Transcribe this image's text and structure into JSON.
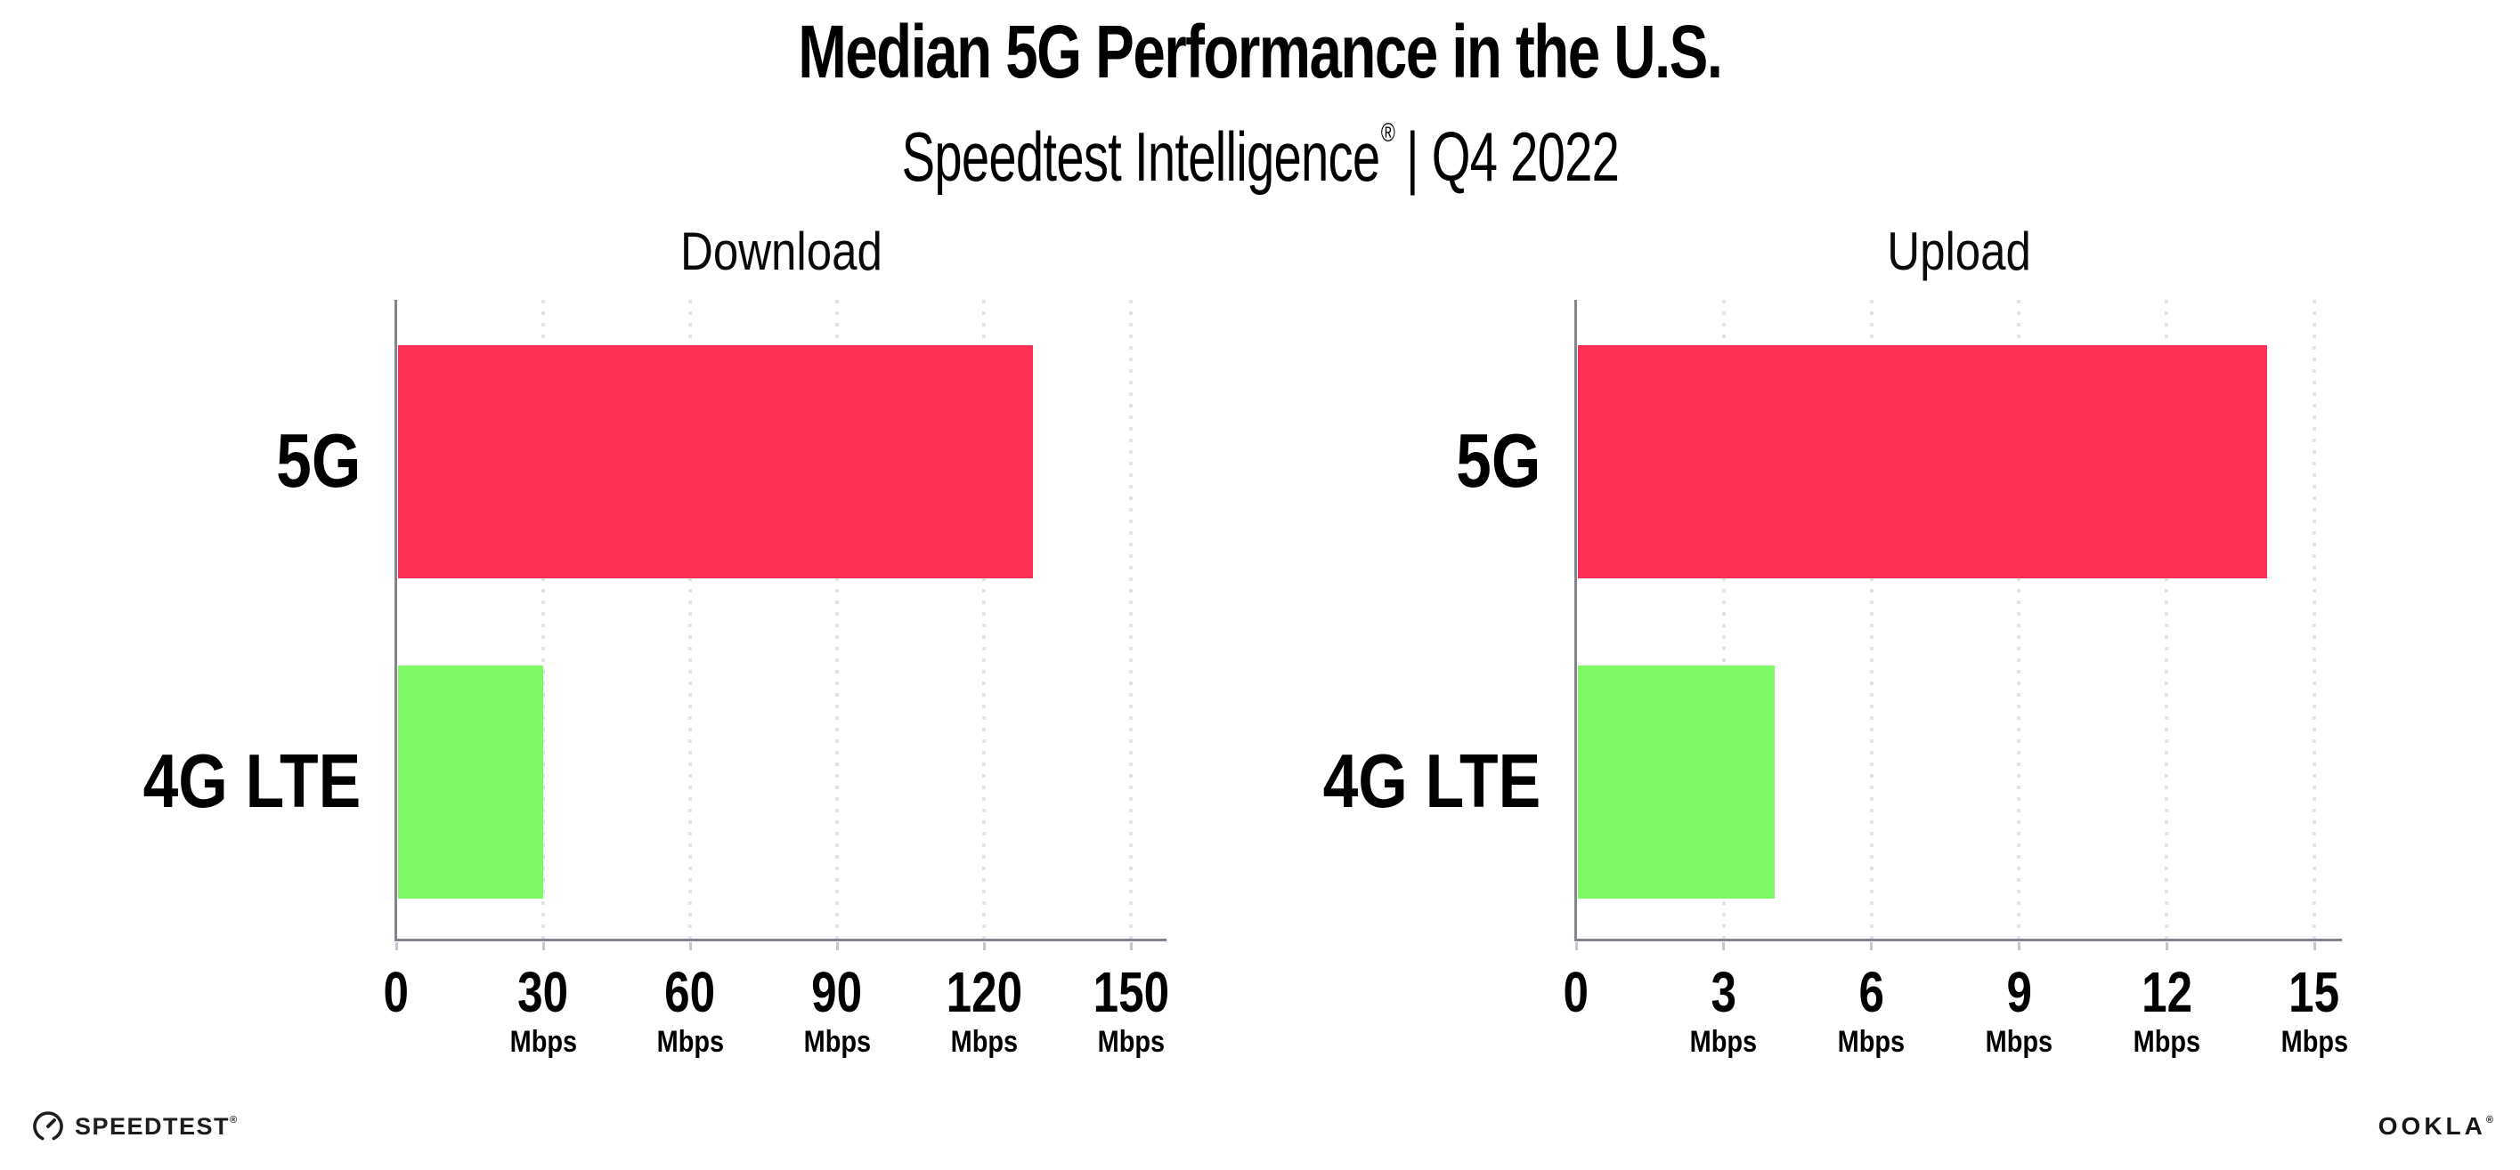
{
  "header": {
    "title": "Median 5G Performance in the U.S.",
    "subtitle_brand": "Speedtest Intelligence",
    "subtitle_reg": "®",
    "subtitle_rest": "| Q4 2022"
  },
  "footer": {
    "speedtest_label": "SPEEDTEST",
    "speedtest_reg": "®",
    "ookla_label": "OOKLA",
    "ookla_reg": "®"
  },
  "colors": {
    "bar_5g": "#ff3056",
    "bar_4g_lte": "#80fa64",
    "gridline": "#e3e2ee",
    "axis": "#84848e",
    "text": "#000000",
    "background": "#ffffff"
  },
  "chart_data": [
    {
      "type": "bar",
      "orientation": "horizontal",
      "title": "Download",
      "categories": [
        "5G",
        "4G LTE"
      ],
      "values": [
        129.6,
        29.7
      ],
      "unit": "Mbps",
      "xlim": [
        0,
        150
      ],
      "xticks": [
        0,
        30,
        60,
        90,
        120,
        150
      ],
      "xtick_unit": "Mbps",
      "bar_colors": [
        "#ff3056",
        "#80fa64"
      ],
      "grid": "vertical-dotted",
      "legend": "none"
    },
    {
      "type": "bar",
      "orientation": "horizontal",
      "title": "Upload",
      "categories": [
        "5G",
        "4G LTE"
      ],
      "values": [
        14.0,
        4.0
      ],
      "unit": "Mbps",
      "xlim": [
        0,
        15
      ],
      "xticks": [
        0,
        3,
        6,
        9,
        12,
        15
      ],
      "xtick_unit": "Mbps",
      "bar_colors": [
        "#ff3056",
        "#80fa64"
      ],
      "grid": "vertical-dotted",
      "legend": "none"
    }
  ]
}
